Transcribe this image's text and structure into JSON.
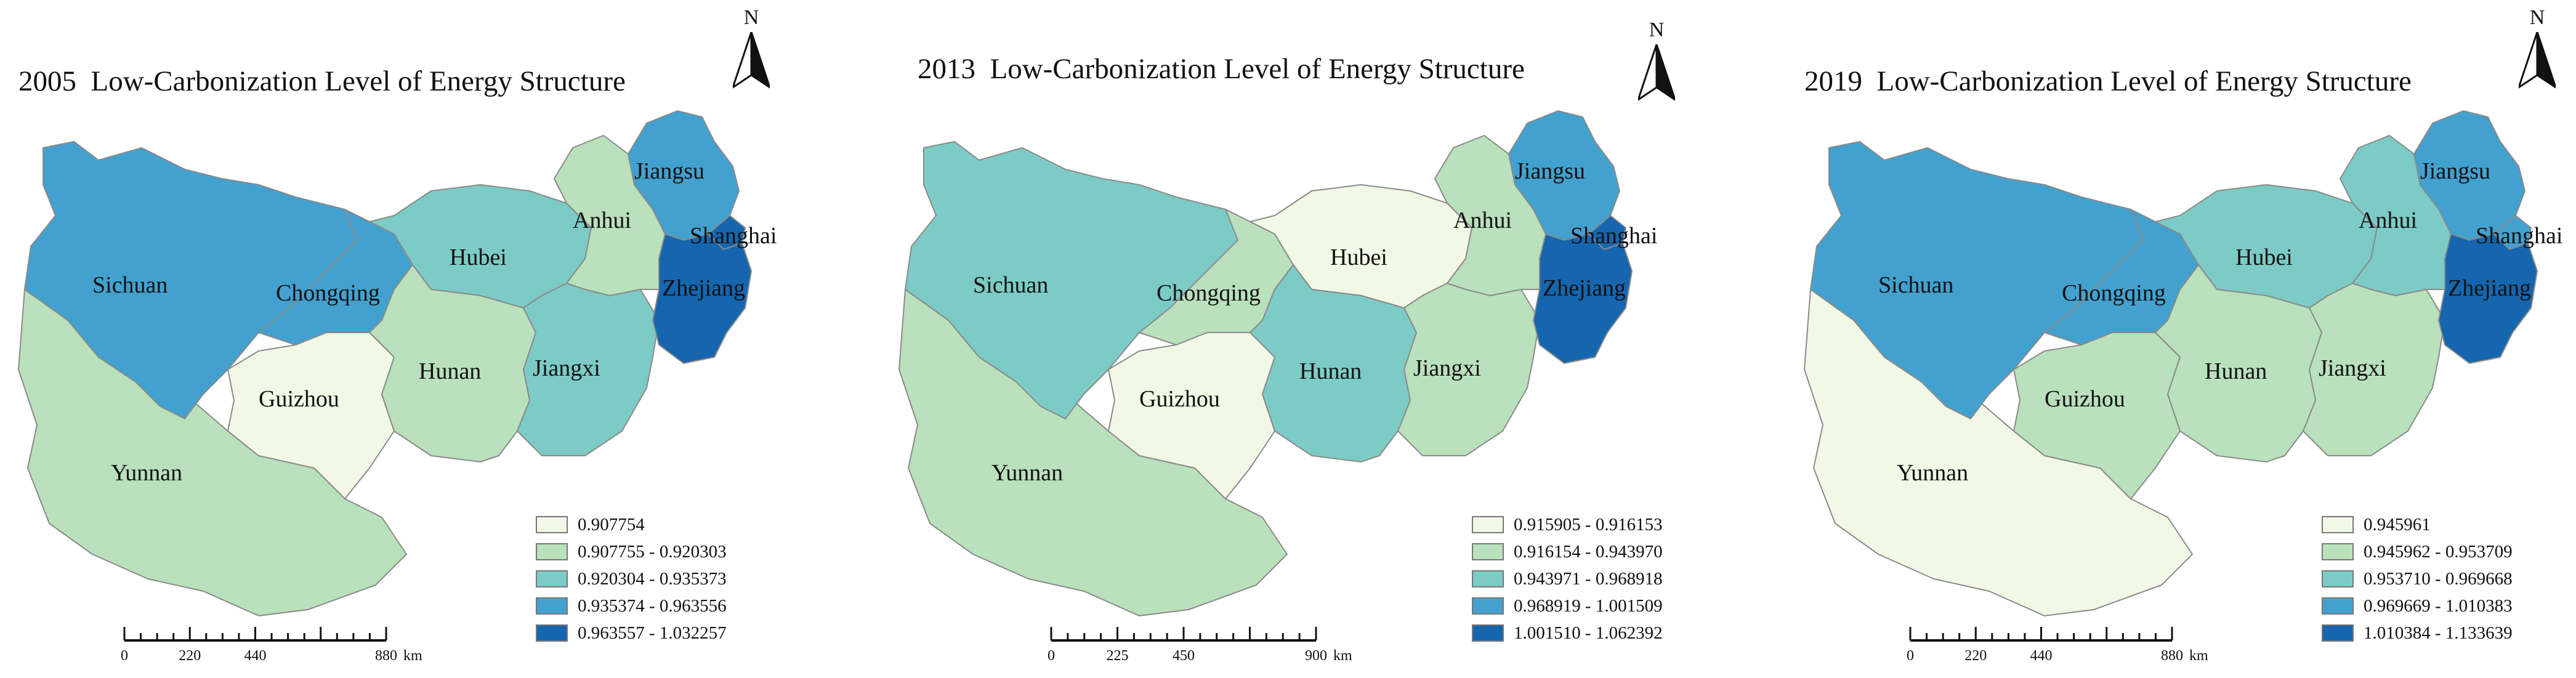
{
  "colors": {
    "class1": "#f1f8e6",
    "class2": "#b9e1bc",
    "class3": "#7ccbc6",
    "class4": "#42a1cf",
    "class5": "#1566ae",
    "border": "#8a8a8a"
  },
  "maps": [
    {
      "title": "2005  Low-Carbonization Level of Energy Structure",
      "north_label": "N",
      "provinces": {
        "Sichuan": "class4",
        "Chongqing": "class4",
        "Yunnan": "class2",
        "Guizhou": "class1",
        "Hubei": "class3",
        "Hunan": "class2",
        "Jiangxi": "class3",
        "Anhui": "class2",
        "Jiangsu": "class4",
        "Shanghai": "class5",
        "Zhejiang": "class5"
      },
      "legend": [
        "0.907754",
        "0.907755 - 0.920303",
        "0.920304 - 0.935373",
        "0.935374 - 0.963556",
        "0.963557 - 1.032257"
      ],
      "scale": {
        "ticks": [
          "0",
          "220",
          "440",
          "880"
        ],
        "unit": "km"
      }
    },
    {
      "title": "2013  Low-Carbonization Level of Energy Structure",
      "north_label": "N",
      "provinces": {
        "Sichuan": "class3",
        "Chongqing": "class2",
        "Yunnan": "class2",
        "Guizhou": "class1",
        "Hubei": "class1",
        "Hunan": "class3",
        "Jiangxi": "class2",
        "Anhui": "class2",
        "Jiangsu": "class4",
        "Shanghai": "class5",
        "Zhejiang": "class5"
      },
      "legend": [
        "0.915905 - 0.916153",
        "0.916154 - 0.943970",
        "0.943971 - 0.968918",
        "0.968919 - 1.001509",
        "1.001510 - 1.062392"
      ],
      "scale": {
        "ticks": [
          "0",
          "225",
          "450",
          "900"
        ],
        "unit": "km"
      }
    },
    {
      "title": "2019  Low-Carbonization Level of Energy Structure",
      "north_label": "N",
      "provinces": {
        "Sichuan": "class4",
        "Chongqing": "class4",
        "Yunnan": "class1",
        "Guizhou": "class2",
        "Hubei": "class3",
        "Hunan": "class2",
        "Jiangxi": "class2",
        "Anhui": "class3",
        "Jiangsu": "class4",
        "Shanghai": "class4",
        "Zhejiang": "class5"
      },
      "legend": [
        "0.945961",
        "0.945962 - 0.953709",
        "0.953710 - 0.969668",
        "0.969669 - 1.010383",
        "1.010384 - 1.133639"
      ],
      "scale": {
        "ticks": [
          "0",
          "220",
          "440",
          "880"
        ],
        "unit": "km"
      }
    }
  ]
}
